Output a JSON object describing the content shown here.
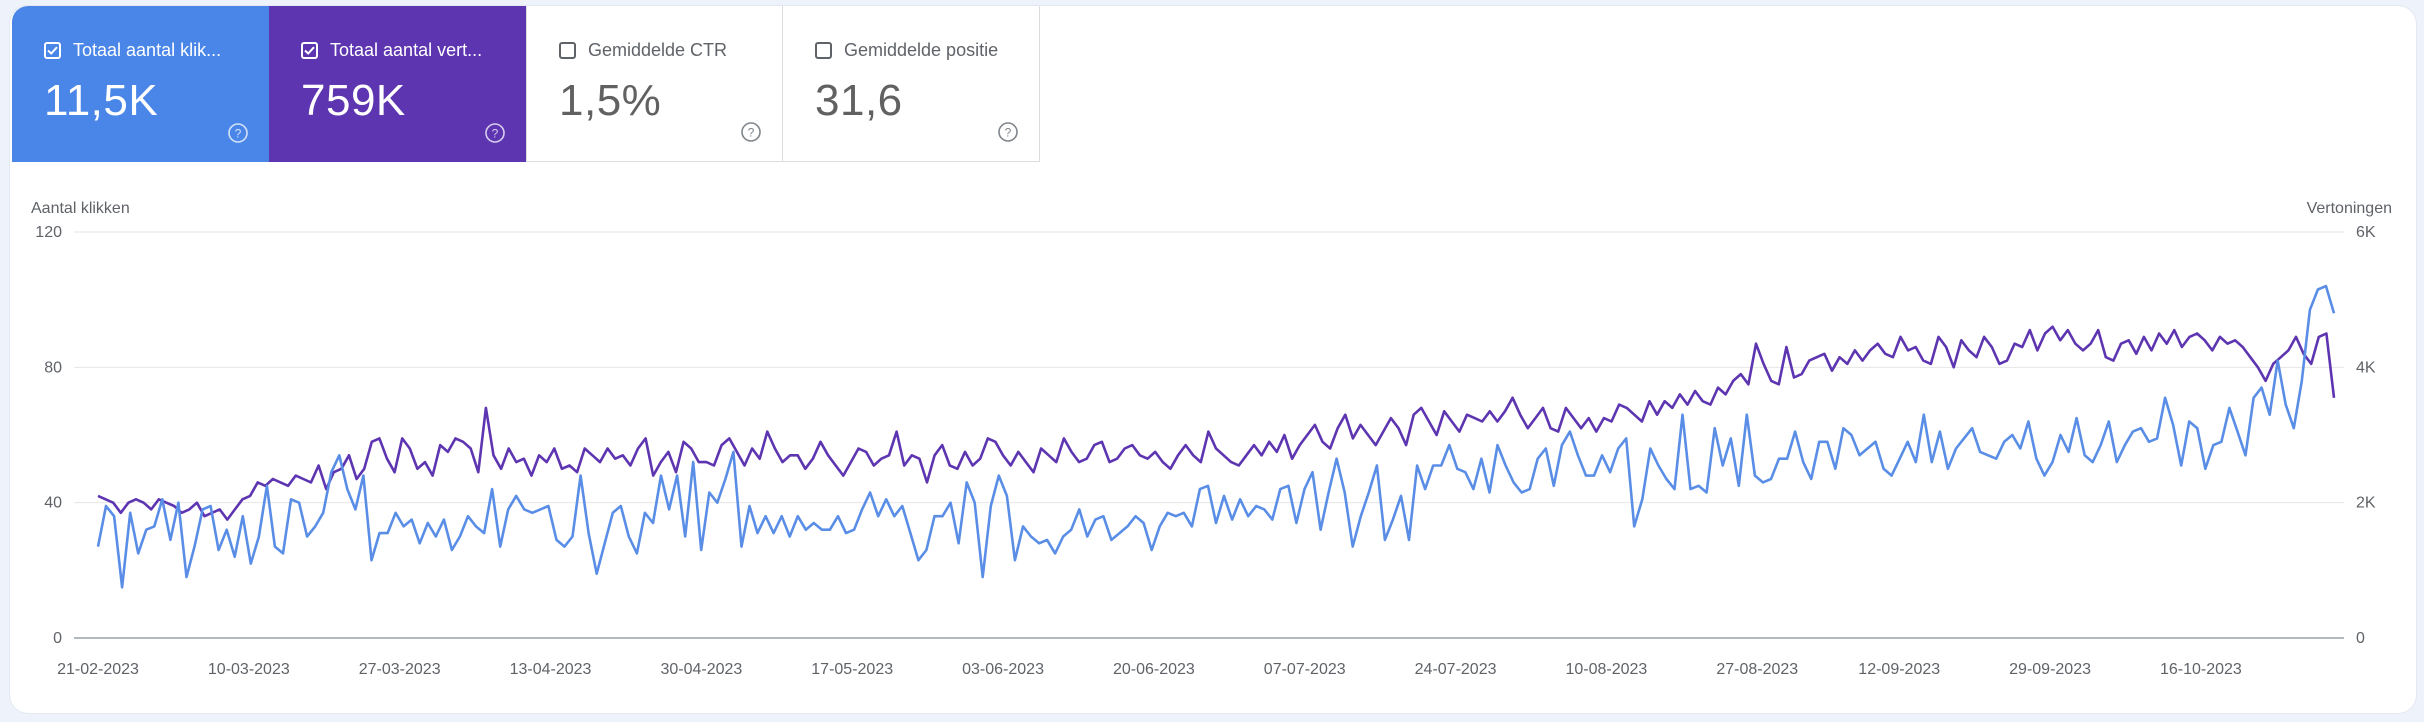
{
  "metrics": [
    {
      "label": "Totaal aantal klik...",
      "value": "11,5K",
      "checked": true
    },
    {
      "label": "Totaal aantal vert...",
      "value": "759K",
      "checked": true
    },
    {
      "label": "Gemiddelde CTR",
      "value": "1,5%",
      "checked": false
    },
    {
      "label": "Gemiddelde positie",
      "value": "31,6",
      "checked": false
    }
  ],
  "colors": {
    "clicks": "#5a8ee6",
    "impressions": "#5e35b1",
    "grid": "#e6e6e6",
    "axis": "#9aa0a6",
    "text": "#5f6368"
  },
  "chart_data": {
    "type": "line",
    "ylabel": "Aantal klikken",
    "y2label": "Vertoningen",
    "ylim": [
      0,
      120
    ],
    "y2lim": [
      0,
      6000
    ],
    "yticks": [
      "0",
      "40",
      "80",
      "120"
    ],
    "y2ticks": [
      "0",
      "2K",
      "4K",
      "6K"
    ],
    "xtick_labels": [
      "21-02-2023",
      "10-03-2023",
      "27-03-2023",
      "13-04-2023",
      "30-04-2023",
      "17-05-2023",
      "03-06-2023",
      "20-06-2023",
      "07-07-2023",
      "24-07-2023",
      "10-08-2023",
      "27-08-2023",
      "12-09-2023",
      "29-09-2023",
      "16-10-2023"
    ],
    "x_start": "21-02-2023",
    "x_end": "31-10-2023",
    "series": [
      {
        "name": "Totaal aantal klikken",
        "axis": "left",
        "values": [
          27,
          39,
          36,
          15,
          37,
          25,
          32,
          33,
          41,
          29,
          40,
          18,
          27,
          38,
          39,
          26,
          32,
          24,
          36,
          22,
          30,
          45,
          27,
          25,
          41,
          40,
          30,
          33,
          37,
          49,
          54,
          44,
          38,
          48,
          23,
          31,
          31,
          37,
          33,
          35,
          28,
          34,
          30,
          35,
          26,
          30,
          36,
          33,
          31,
          44,
          27,
          38,
          42,
          38,
          37,
          38,
          39,
          29,
          27,
          30,
          48,
          31,
          19,
          28,
          37,
          39,
          30,
          25,
          37,
          34,
          48,
          38,
          48,
          30,
          52,
          26,
          43,
          40,
          47,
          55,
          27,
          39,
          31,
          36,
          31,
          36,
          30,
          36,
          32,
          34,
          32,
          32,
          36,
          31,
          32,
          38,
          43,
          36,
          41,
          36,
          39,
          31,
          23,
          26,
          36,
          36,
          40,
          28,
          46,
          40,
          18,
          39,
          48,
          42,
          23,
          33,
          30,
          28,
          29,
          25,
          30,
          32,
          38,
          30,
          35,
          36,
          29,
          31,
          33,
          36,
          34,
          26,
          33,
          37,
          36,
          37,
          33,
          44,
          45,
          34,
          42,
          35,
          41,
          36,
          39,
          38,
          35,
          44,
          45,
          34,
          44,
          49,
          32,
          43,
          53,
          43,
          27,
          36,
          43,
          51,
          29,
          35,
          42,
          29,
          51,
          44,
          51,
          51,
          57,
          50,
          49,
          44,
          53,
          43,
          57,
          51,
          46,
          43,
          44,
          53,
          56,
          45,
          57,
          61,
          54,
          48,
          48,
          54,
          49,
          56,
          59,
          33,
          41,
          56,
          51,
          47,
          44,
          66,
          44,
          45,
          43,
          62,
          51,
          59,
          45,
          66,
          48,
          46,
          47,
          53,
          53,
          61,
          52,
          47,
          58,
          58,
          50,
          62,
          60,
          54,
          56,
          58,
          50,
          48,
          53,
          58,
          52,
          66,
          52,
          61,
          50,
          56,
          59,
          62,
          55,
          54,
          53,
          58,
          60,
          56,
          64,
          53,
          48,
          52,
          60,
          55,
          65,
          54,
          52,
          57,
          64,
          52,
          57,
          61,
          62,
          58,
          59,
          71,
          63,
          51,
          64,
          62,
          50,
          57,
          58,
          68,
          61,
          54,
          71,
          74,
          66,
          82,
          69,
          62,
          76,
          97,
          103,
          104,
          96
        ],
        "visible_impressions_partial": true
      },
      {
        "name": "Totaal aantal vertoningen",
        "axis": "right",
        "values": [
          2100,
          2050,
          2000,
          1850,
          2000,
          2050,
          2000,
          1900,
          2050,
          2000,
          1950,
          1850,
          1900,
          2000,
          1800,
          1850,
          1900,
          1750,
          1900,
          2050,
          2100,
          2300,
          2250,
          2350,
          2300,
          2250,
          2400,
          2350,
          2300,
          2550,
          2200,
          2450,
          2500,
          2700,
          2350,
          2500,
          2900,
          2950,
          2650,
          2450,
          2950,
          2800,
          2500,
          2600,
          2400,
          2850,
          2750,
          2950,
          2900,
          2800,
          2450,
          3400,
          2700,
          2500,
          2800,
          2600,
          2650,
          2400,
          2700,
          2600,
          2800,
          2500,
          2550,
          2450,
          2800,
          2700,
          2600,
          2800,
          2650,
          2700,
          2550,
          2800,
          2950,
          2400,
          2600,
          2750,
          2450,
          2900,
          2800,
          2600,
          2600,
          2550,
          2850,
          2950,
          2750,
          2550,
          2800,
          2650,
          3050,
          2800,
          2600,
          2700,
          2700,
          2500,
          2650,
          2900,
          2700,
          2550,
          2400,
          2600,
          2800,
          2750,
          2550,
          2650,
          2700,
          3050,
          2550,
          2700,
          2650,
          2300,
          2700,
          2850,
          2550,
          2500,
          2750,
          2550,
          2650,
          2950,
          2900,
          2700,
          2550,
          2750,
          2600,
          2450,
          2800,
          2700,
          2600,
          2950,
          2750,
          2600,
          2650,
          2850,
          2900,
          2600,
          2650,
          2800,
          2850,
          2700,
          2650,
          2750,
          2600,
          2500,
          2700,
          2850,
          2700,
          2600,
          3050,
          2800,
          2700,
          2600,
          2550,
          2700,
          2850,
          2700,
          2900,
          2750,
          3000,
          2650,
          2850,
          3000,
          3150,
          2900,
          2800,
          3100,
          3300,
          2950,
          3150,
          3000,
          2850,
          3050,
          3250,
          3100,
          2850,
          3300,
          3400,
          3200,
          3000,
          3350,
          3200,
          3050,
          3300,
          3250,
          3200,
          3350,
          3200,
          3350,
          3550,
          3300,
          3100,
          3250,
          3400,
          3100,
          3050,
          3400,
          3250,
          3100,
          3250,
          3050,
          3250,
          3200,
          3450,
          3400,
          3300,
          3200,
          3500,
          3300,
          3500,
          3400,
          3600,
          3450,
          3650,
          3500,
          3450,
          3700,
          3600,
          3800,
          3900,
          3750,
          4350,
          4050,
          3800,
          3750,
          4300,
          3850,
          3900,
          4100,
          4150,
          4200,
          3950,
          4150,
          4050,
          4250,
          4100,
          4250,
          4350,
          4200,
          4150,
          4450,
          4250,
          4300,
          4100,
          4050,
          4450,
          4300,
          4000,
          4400,
          4250,
          4150,
          4450,
          4300,
          4050,
          4100,
          4350,
          4300,
          4550,
          4250,
          4500,
          4600,
          4400,
          4550,
          4350,
          4250,
          4350,
          4550,
          4150,
          4100,
          4350,
          4400,
          4200,
          4450,
          4250,
          4500,
          4350,
          4550,
          4300,
          4450,
          4500,
          4400,
          4250,
          4450,
          4350,
          4400,
          4300,
          4150,
          4000,
          3800,
          4050,
          4150,
          4250,
          4450,
          4200,
          4050,
          4450,
          4500,
          3550
        ]
      }
    ]
  }
}
